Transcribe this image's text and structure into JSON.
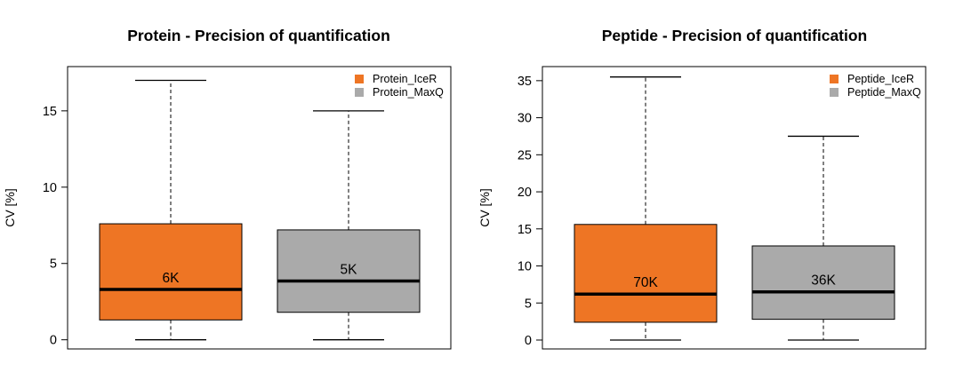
{
  "chart_data": [
    {
      "type": "boxplot",
      "title": "Protein - Precision of quantification",
      "ylabel": "CV [%]",
      "ylim": [
        -0.6,
        17.9
      ],
      "yticks": [
        0,
        5,
        10,
        15
      ],
      "grid": false,
      "legend": {
        "placement": "top-right",
        "entries": [
          {
            "label": "Protein_IceR",
            "color": "#EE7524"
          },
          {
            "label": "Protein_MaxQ",
            "color": "#AAAAAA"
          }
        ]
      },
      "boxes": [
        {
          "name": "Protein_IceR",
          "color": "#EE7524",
          "min": 0.0,
          "q1": 1.3,
          "median": 3.3,
          "q3": 7.6,
          "max": 17.0,
          "count_label": "6K"
        },
        {
          "name": "Protein_MaxQ",
          "color": "#AAAAAA",
          "min": 0.0,
          "q1": 1.8,
          "median": 3.85,
          "q3": 7.2,
          "max": 15.0,
          "count_label": "5K"
        }
      ]
    },
    {
      "type": "boxplot",
      "title": "Peptide - Precision of quantification",
      "ylabel": "CV [%]",
      "ylim": [
        -1.2,
        36.9
      ],
      "yticks": [
        0,
        5,
        10,
        15,
        20,
        25,
        30,
        35
      ],
      "grid": false,
      "legend": {
        "placement": "top-right",
        "entries": [
          {
            "label": "Peptide_IceR",
            "color": "#EE7524"
          },
          {
            "label": "Peptide_MaxQ",
            "color": "#AAAAAA"
          }
        ]
      },
      "boxes": [
        {
          "name": "Peptide_IceR",
          "color": "#EE7524",
          "min": 0.0,
          "q1": 2.4,
          "median": 6.2,
          "q3": 15.6,
          "max": 35.5,
          "count_label": "70K"
        },
        {
          "name": "Peptide_MaxQ",
          "color": "#AAAAAA",
          "min": 0.0,
          "q1": 2.8,
          "median": 6.5,
          "q3": 12.7,
          "max": 27.5,
          "count_label": "36K"
        }
      ]
    }
  ]
}
